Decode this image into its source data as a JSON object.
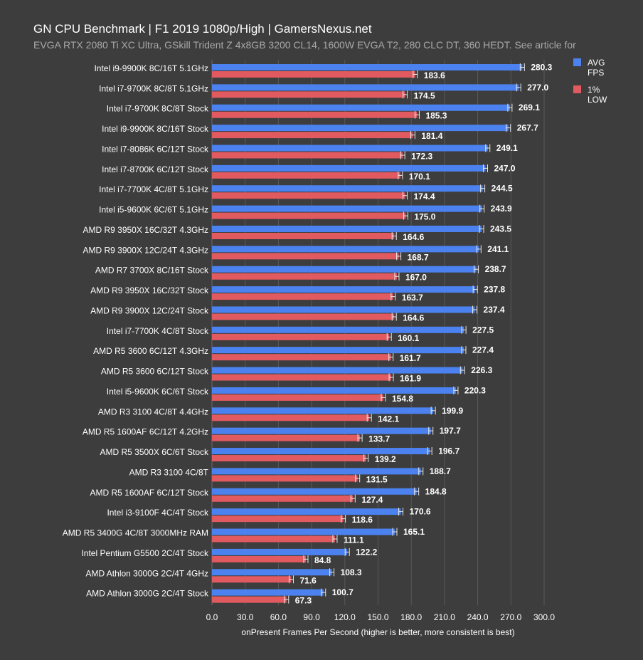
{
  "header": {
    "title": "GN CPU Benchmark | F1 2019 1080p/High | GamersNexus.net",
    "subtitle": "EVGA RTX 2080 Ti XC Ultra, GSkill Trident Z 4x8GB 3200 CL14, 1600W EVGA T2, 280 CLC DT, 360 HEDT. See article for"
  },
  "chart_data": {
    "type": "bar",
    "orientation": "horizontal",
    "title": "GN CPU Benchmark | F1 2019 1080p/High | GamersNexus.net",
    "subtitle": "EVGA RTX 2080 Ti XC Ultra, GSkill Trident Z 4x8GB 3200 CL14, 1600W EVGA T2, 280 CLC DT, 360 HEDT. See article for",
    "xlabel": "onPresent Frames Per Second (higher is better, more consistent is best)",
    "ylabel": "",
    "xlim": [
      0,
      300
    ],
    "x_ticks": [
      "0.0",
      "30.0",
      "60.0",
      "90.0",
      "120.0",
      "150.0",
      "180.0",
      "210.0",
      "240.0",
      "270.0",
      "300.0"
    ],
    "grid": true,
    "legend_position": "top-right",
    "categories": [
      "Intel i9-9900K 8C/16T 5.1GHz",
      "Intel i7-9700K 8C/8T 5.1GHz",
      "Intel i7-9700K 8C/8T Stock",
      "Intel i9-9900K 8C/16T Stock",
      "Intel i7-8086K 6C/12T Stock",
      "Intel i7-8700K 6C/12T Stock",
      "Intel i7-7700K 4C/8T 5.1GHz",
      "Intel i5-9600K 6C/6T 5.1GHz",
      "AMD R9 3950X 16C/32T 4.3GHz",
      "AMD R9 3900X 12C/24T 4.3GHz",
      "AMD R7 3700X 8C/16T Stock",
      "AMD R9 3950X 16C/32T Stock",
      "AMD R9 3900X 12C/24T Stock",
      "Intel i7-7700K 4C/8T Stock",
      "AMD R5 3600 6C/12T 4.3GHz",
      "AMD R5 3600 6C/12T Stock",
      "Intel i5-9600K 6C/6T Stock",
      "AMD R3 3100 4C/8T 4.4GHz",
      "AMD R5 1600AF 6C/12T 4.2GHz",
      "AMD R5 3500X 6C/6T Stock",
      "AMD R3 3100 4C/8T",
      "AMD R5 1600AF 6C/12T Stock",
      "Intel i3-9100F 4C/4T Stock",
      "AMD R5 3400G 4C/8T 3000MHz RAM",
      "Intel Pentium G5500 2C/4T Stock",
      "AMD Athlon 3000G 2C/4T 4GHz",
      "AMD Athlon 3000G 2C/4T Stock"
    ],
    "series": [
      {
        "name": "AVG FPS",
        "color": "#4b82f0",
        "values": [
          280.3,
          277.0,
          269.1,
          267.7,
          249.1,
          247.0,
          244.5,
          243.9,
          243.5,
          241.1,
          238.7,
          237.8,
          237.4,
          227.5,
          227.4,
          226.3,
          220.3,
          199.9,
          197.7,
          196.7,
          188.7,
          184.8,
          170.6,
          165.1,
          122.2,
          108.3,
          100.7
        ],
        "labels": [
          "280.3",
          "277.0",
          "269.1",
          "267.7",
          "249.1",
          "247.0",
          "244.5",
          "243.9",
          "243.5",
          "241.1",
          "238.7",
          "237.8",
          "237.4",
          "227.5",
          "227.4",
          "226.3",
          "220.3",
          "199.9",
          "197.7",
          "196.7",
          "188.7",
          "184.8",
          "170.6",
          "165.1",
          "122.2",
          "108.3",
          "100.7"
        ]
      },
      {
        "name": "1% LOW",
        "color": "#e05a5f",
        "values": [
          183.6,
          174.5,
          185.3,
          181.4,
          172.3,
          170.1,
          174.4,
          175.0,
          164.6,
          168.7,
          167.0,
          163.7,
          164.6,
          160.1,
          161.7,
          161.9,
          154.8,
          142.1,
          133.7,
          139.2,
          131.5,
          127.4,
          118.6,
          111.1,
          84.8,
          71.6,
          67.3
        ],
        "labels": [
          "183.6",
          "174.5",
          "185.3",
          "181.4",
          "172.3",
          "170.1",
          "174.4",
          "175.0",
          "164.6",
          "168.7",
          "167.0",
          "163.7",
          "164.6",
          "160.1",
          "161.7",
          "161.9",
          "154.8",
          "142.1",
          "133.7",
          "139.2",
          "131.5",
          "127.4",
          "118.6",
          "111.1",
          "84.8",
          "71.6",
          "67.3"
        ]
      }
    ],
    "legend": [
      {
        "lines": [
          "AVG",
          "FPS"
        ],
        "color": "#4b82f0"
      },
      {
        "lines": [
          "1%",
          "LOW"
        ],
        "color": "#e05a5f"
      }
    ]
  }
}
